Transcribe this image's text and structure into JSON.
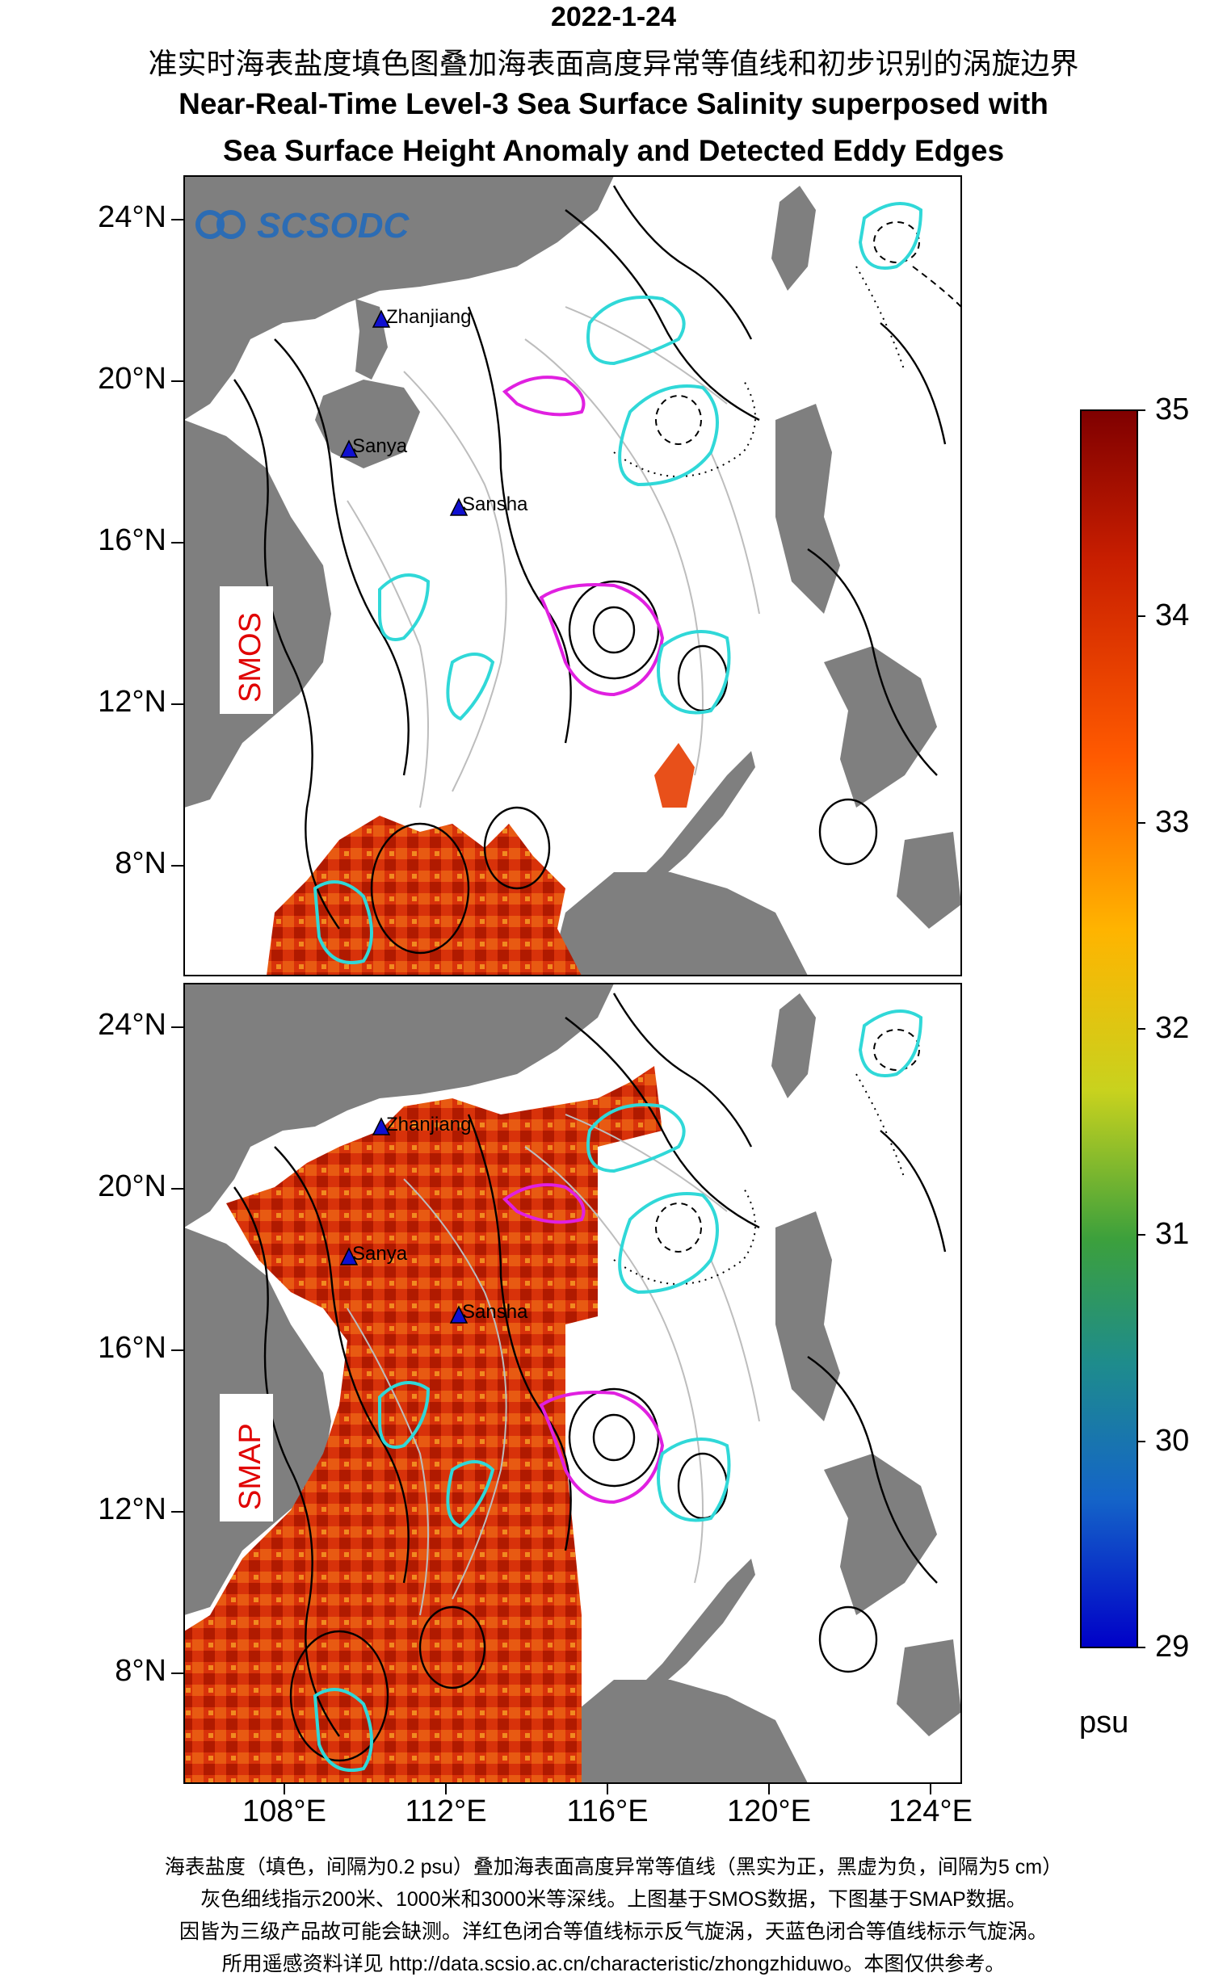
{
  "header": {
    "date": "2022-1-24",
    "title_cn": "准实时海表盐度填色图叠加海表面高度异常等值线和初步识别的涡旋边界",
    "title_en_1": "Near-Real-Time Level-3 Sea Surface Salinity superposed with",
    "title_en_2": "Sea Surface Height Anomaly and Detected Eddy Edges"
  },
  "logo_text": "SCSODC",
  "panels": [
    {
      "label": "SMOS"
    },
    {
      "label": "SMAP"
    }
  ],
  "lat_ticks": [
    "24°N",
    "20°N",
    "16°N",
    "12°N",
    "8°N"
  ],
  "lon_ticks": [
    "108°E",
    "112°E",
    "116°E",
    "120°E",
    "124°E"
  ],
  "places": [
    {
      "name": "Zhanjiang"
    },
    {
      "name": "Sanya"
    },
    {
      "name": "Sansha"
    }
  ],
  "colorbar": {
    "ticks": [
      "35",
      "34",
      "33",
      "32",
      "31",
      "30",
      "29"
    ],
    "unit": "psu",
    "range": [
      29,
      35
    ],
    "colors": [
      "#7f0000",
      "#c81e00",
      "#ff5a00",
      "#ffb400",
      "#c8d21e",
      "#3ca03c",
      "#1e8c8c",
      "#1464c8",
      "#0000c8"
    ]
  },
  "eddy_colors": {
    "anticyclonic": "#e020e0",
    "cyclonic": "#30d8d8"
  },
  "caption": {
    "line1": "海表盐度（填色，间隔为0.2 psu）叠加海表面高度异常等值线（黑实为正，黑虚为负，间隔为5 cm）",
    "line2": "灰色细线指示200米、1000米和3000米等深线。上图基于SMOS数据，下图基于SMAP数据。",
    "line3": "因皆为三级产品故可能会缺测。洋红色闭合等值线标示反气旋涡，天蓝色闭合等值线标示气旋涡。",
    "line4": "所用遥感资料详见 http://data.scsio.ac.cn/characteristic/zhongzhiduwo。本图仅供参考。"
  }
}
